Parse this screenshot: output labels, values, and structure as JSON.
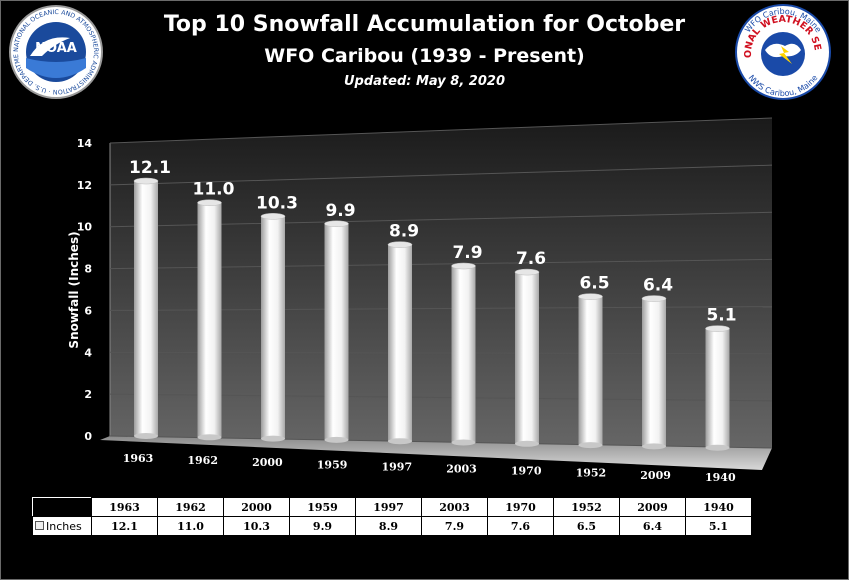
{
  "chart_data": {
    "type": "bar",
    "title": "Top 10 Snowfall Accumulation for October",
    "subtitle": "WFO Caribou (1939 - Present)",
    "updated": "Updated:  May 8, 2020",
    "ylabel": "Snowfall (Inches)",
    "xlabel": "",
    "ylim": [
      0,
      14
    ],
    "yticks": [
      0,
      2,
      4,
      6,
      8,
      10,
      12,
      14
    ],
    "grid": true,
    "categories": [
      "1963",
      "1962",
      "2000",
      "1959",
      "1997",
      "2003",
      "1970",
      "1952",
      "2009",
      "1940"
    ],
    "series": [
      {
        "name": "Inches",
        "values": [
          12.1,
          11.0,
          10.3,
          9.9,
          8.9,
          7.9,
          7.6,
          6.5,
          6.4,
          5.1
        ],
        "labels": [
          "12.1",
          "11.0",
          "10.3",
          "9.9",
          "8.9",
          "7.9",
          "7.6",
          "6.5",
          "6.4",
          "5.1"
        ]
      }
    ],
    "legend_position": "table-left"
  },
  "logos": {
    "noaa": {
      "name": "NOAA",
      "ring_text": "NATIONAL OCEANIC AND ATMOSPHERIC ADMINISTRATION · U.S. DEPARTMENT OF COMMERCE",
      "color": "#1a4a9c"
    },
    "nws": {
      "ring_text_top": "WFO Caribou, Maine",
      "arc_text": "NATIONAL WEATHER SERVICE",
      "ring_text_bottom": "NWS Caribou, Maine",
      "arc_color": "#d01020",
      "ring_color": "#1a4aa8"
    }
  }
}
